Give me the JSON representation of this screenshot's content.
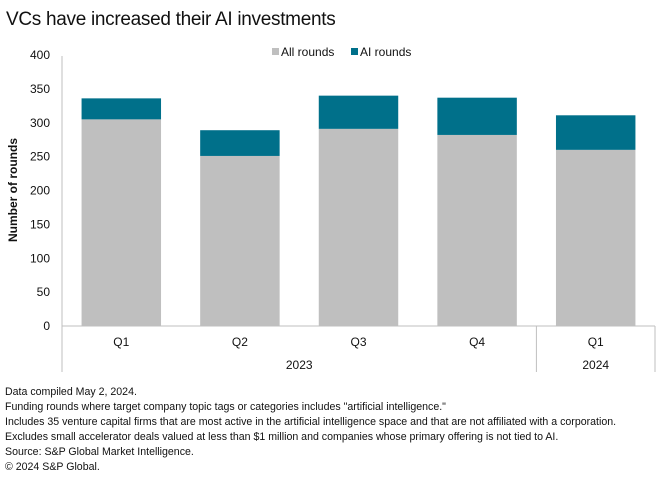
{
  "chart_data": {
    "type": "bar",
    "stacked": true,
    "title": "VCs have increased their AI investments",
    "xlabel": "",
    "ylabel": "Number of rounds",
    "ylim": [
      0,
      400
    ],
    "yticks": [
      0,
      50,
      100,
      150,
      200,
      250,
      300,
      350,
      400
    ],
    "grid": false,
    "legend_position": "top-center",
    "categories": [
      "Q1",
      "Q2",
      "Q3",
      "Q4",
      "Q1"
    ],
    "category_groups": [
      {
        "label": "2023",
        "categories": [
          "Q1",
          "Q2",
          "Q3",
          "Q4"
        ]
      },
      {
        "label": "2024",
        "categories": [
          "Q1"
        ]
      }
    ],
    "series": [
      {
        "name": "All rounds",
        "color": "#bfbfbf",
        "values": [
          305,
          251,
          291,
          282,
          260
        ]
      },
      {
        "name": "AI rounds",
        "color": "#00708a",
        "values": [
          31,
          38,
          49,
          55,
          51
        ]
      }
    ]
  },
  "footer": {
    "lines": [
      "Data compiled May 2, 2024.",
      "Funding rounds where target company topic tags or categories includes \"artificial intelligence.\"",
      "Includes 35 venture capital firms that are most active in the artificial intelligence space and that are not affiliated with a corporation.",
      "Excludes small accelerator deals valued at less than $1 million and companies whose primary offering is not tied to AI.",
      "Source: S&P Global Market Intelligence.",
      "© 2024 S&P Global."
    ]
  }
}
